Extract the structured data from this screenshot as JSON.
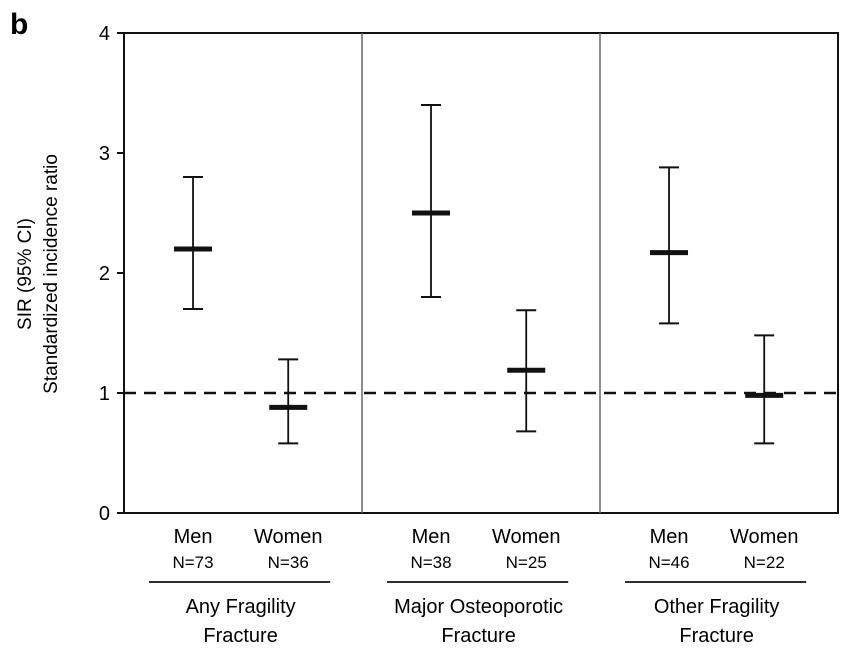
{
  "panel_letter": "b",
  "chart_data": {
    "type": "errorbar",
    "ylabel": [
      "SIR (95% CI)",
      "Standardized incidence ratio"
    ],
    "ylim": [
      0,
      4
    ],
    "yticks": [
      0,
      1,
      2,
      3,
      4
    ],
    "reference_line": 1,
    "reference_style": "dashed",
    "grid": false,
    "groups": [
      {
        "label": [
          "Any Fragility",
          "Fracture"
        ],
        "points": [
          {
            "category": "Men",
            "n": "N=73",
            "estimate": 2.2,
            "lower": 1.7,
            "upper": 2.8
          },
          {
            "category": "Women",
            "n": "N=36",
            "estimate": 0.88,
            "lower": 0.58,
            "upper": 1.28
          }
        ]
      },
      {
        "label": [
          "Major Osteoporotic",
          "Fracture"
        ],
        "points": [
          {
            "category": "Men",
            "n": "N=38",
            "estimate": 2.5,
            "lower": 1.8,
            "upper": 3.4
          },
          {
            "category": "Women",
            "n": "N=25",
            "estimate": 1.19,
            "lower": 0.68,
            "upper": 1.69
          }
        ]
      },
      {
        "label": [
          "Other Fragility",
          "Fracture"
        ],
        "points": [
          {
            "category": "Men",
            "n": "N=46",
            "estimate": 2.17,
            "lower": 1.58,
            "upper": 2.88
          },
          {
            "category": "Women",
            "n": "N=22",
            "estimate": 0.98,
            "lower": 0.58,
            "upper": 1.48
          }
        ]
      }
    ]
  }
}
